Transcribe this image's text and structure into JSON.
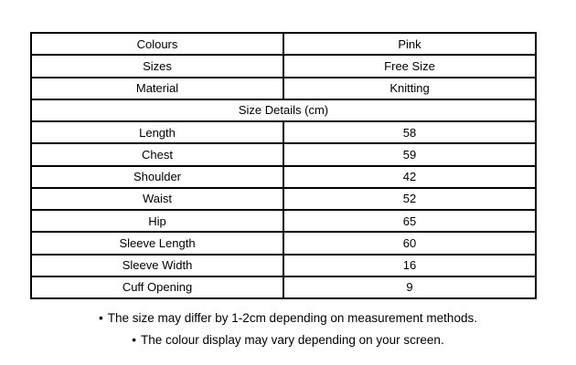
{
  "table": {
    "rows": [
      {
        "label": "Colours",
        "value": "Pink"
      },
      {
        "label": "Sizes",
        "value": "Free Size"
      },
      {
        "label": "Material",
        "value": "Knitting"
      },
      {
        "header": "Size Details (cm)"
      },
      {
        "label": "Length",
        "value": "58"
      },
      {
        "label": "Chest",
        "value": "59"
      },
      {
        "label": "Shoulder",
        "value": "42"
      },
      {
        "label": "Waist",
        "value": "52"
      },
      {
        "label": "Hip",
        "value": "65"
      },
      {
        "label": "Sleeve Length",
        "value": "60"
      },
      {
        "label": "Sleeve Width",
        "value": "16"
      },
      {
        "label": "Cuff Opening",
        "value": "9"
      }
    ]
  },
  "notes": [
    {
      "bullet": "•",
      "text": "The size may differ by 1-2cm depending on measurement methods."
    },
    {
      "bullet": "•",
      "text": "The colour display may vary depending on your screen."
    }
  ]
}
